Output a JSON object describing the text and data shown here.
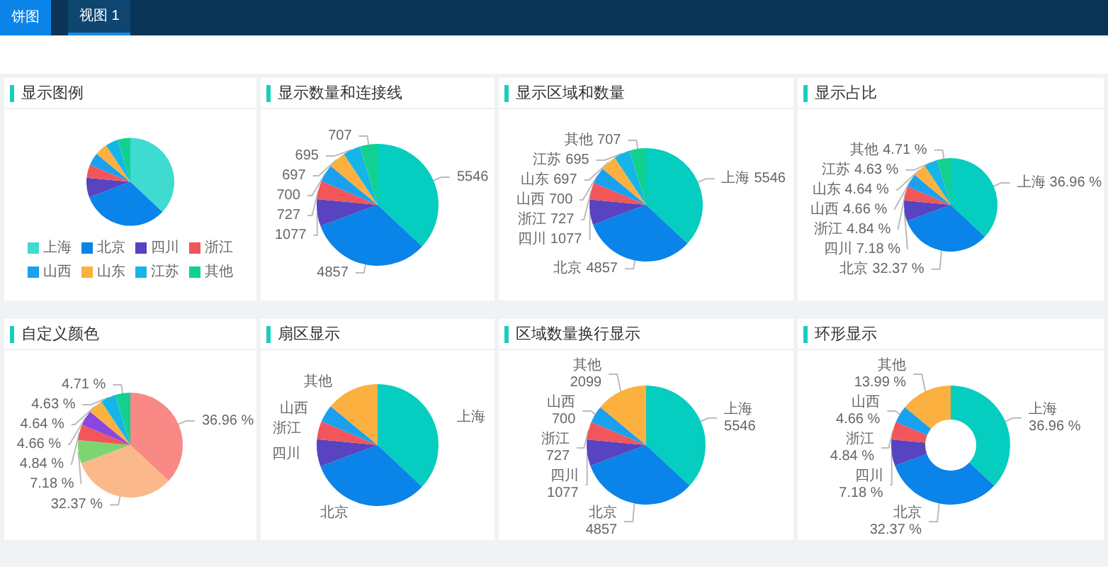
{
  "chart_data": [
    {
      "type": "other",
      "annotations": [
        "饼图",
        "视图 1"
      ]
    },
    {
      "type": "pie",
      "title": "显示图例",
      "categories": [
        "上海",
        "北京",
        "四川",
        "浙江",
        "山西",
        "山东",
        "江苏",
        "其他"
      ],
      "values": [
        36.96,
        32.37,
        7.18,
        4.84,
        4.66,
        4.64,
        4.63,
        4.71
      ],
      "colors": [
        "#3fdad0",
        "#0a84e8",
        "#5843c0",
        "#f0565a",
        "#1aa0ef",
        "#fbb040",
        "#15b5e8",
        "#12d18f"
      ],
      "legend": "bottom"
    },
    {
      "type": "pie",
      "title": "显示数量和连接线",
      "categories": [
        null,
        null,
        null,
        null,
        null,
        null,
        null,
        null
      ],
      "values": [
        5546,
        4857,
        1077,
        727,
        700,
        697,
        695,
        707
      ],
      "colors": [
        "#05cdc0",
        "#0a84e8",
        "#5843c0",
        "#f0565a",
        "#1aa0ef",
        "#fbb040",
        "#15b5e8",
        "#12d18f"
      ],
      "data_labels": true
    },
    {
      "type": "pie",
      "title": "显示区域和数量",
      "categories": [
        "上海",
        "北京",
        "四川",
        "浙江",
        "山西",
        "山东",
        "江苏",
        "其他"
      ],
      "values": [
        5546,
        4857,
        1077,
        727,
        700,
        697,
        695,
        707
      ],
      "colors": [
        "#05cdc0",
        "#0a84e8",
        "#5843c0",
        "#f0565a",
        "#1aa0ef",
        "#fbb040",
        "#15b5e8",
        "#12d18f"
      ],
      "data_labels": true
    },
    {
      "type": "pie",
      "title": "显示占比",
      "categories": [
        "上海",
        "北京",
        "四川",
        "浙江",
        "山西",
        "山东",
        "江苏",
        "其他"
      ],
      "values": [
        36.96,
        32.37,
        7.18,
        4.84,
        4.66,
        4.64,
        4.63,
        4.71
      ],
      "value_labels": [
        "36.96 %",
        "32.37 %",
        "7.18 %",
        "4.84 %",
        "4.66 %",
        "4.64 %",
        "4.63 %",
        "4.71 %"
      ],
      "colors": [
        "#05cdc0",
        "#0a84e8",
        "#5843c0",
        "#f0565a",
        "#1aa0ef",
        "#fbb040",
        "#15b5e8",
        "#12d18f"
      ]
    },
    {
      "type": "pie",
      "title": "自定义颜色",
      "categories": [
        null,
        null,
        null,
        null,
        null,
        null,
        null,
        null
      ],
      "values": [
        36.96,
        32.37,
        7.18,
        4.84,
        4.66,
        4.64,
        4.63,
        4.71
      ],
      "value_labels": [
        "36.96 %",
        "32.37 %",
        "7.18 %",
        "4.84 %",
        "4.66 %",
        "4.64 %",
        "4.63 %",
        "4.71 %"
      ],
      "colors": [
        "#f98985",
        "#fbb98b",
        "#7dd473",
        "#f0565a",
        "#8a46e0",
        "#fbb040",
        "#15b5e8",
        "#12d18f"
      ]
    },
    {
      "type": "pie",
      "title": "扇区显示",
      "categories": [
        "上海",
        "北京",
        "四川",
        "浙江",
        "山西",
        "其他"
      ],
      "values": [
        36.96,
        32.37,
        7.18,
        4.84,
        4.66,
        13.99
      ],
      "colors": [
        "#05cdc0",
        "#0a84e8",
        "#5843c0",
        "#f0565a",
        "#1aa0ef",
        "#fbb040"
      ]
    },
    {
      "type": "pie",
      "title": "区域数量换行显示",
      "categories": [
        "上海",
        "北京",
        "四川",
        "浙江",
        "山西",
        "其他"
      ],
      "values": [
        5546,
        4857,
        1077,
        727,
        700,
        2099
      ],
      "colors": [
        "#05cdc0",
        "#0a84e8",
        "#5843c0",
        "#f0565a",
        "#1aa0ef",
        "#fbb040"
      ],
      "data_labels": true
    },
    {
      "type": "donut",
      "title": "环形显示",
      "categories": [
        "上海",
        "北京",
        "四川",
        "浙江",
        "山西",
        "其他"
      ],
      "values": [
        36.96,
        32.37,
        7.18,
        4.84,
        4.66,
        13.99
      ],
      "value_labels": [
        "36.96 %",
        "32.37 %",
        "7.18 %",
        "4.84 %",
        "4.66 %",
        "13.99 %"
      ],
      "colors": [
        "#05cdc0",
        "#0a84e8",
        "#5843c0",
        "#f0565a",
        "#1aa0ef",
        "#fbb040"
      ]
    }
  ]
}
